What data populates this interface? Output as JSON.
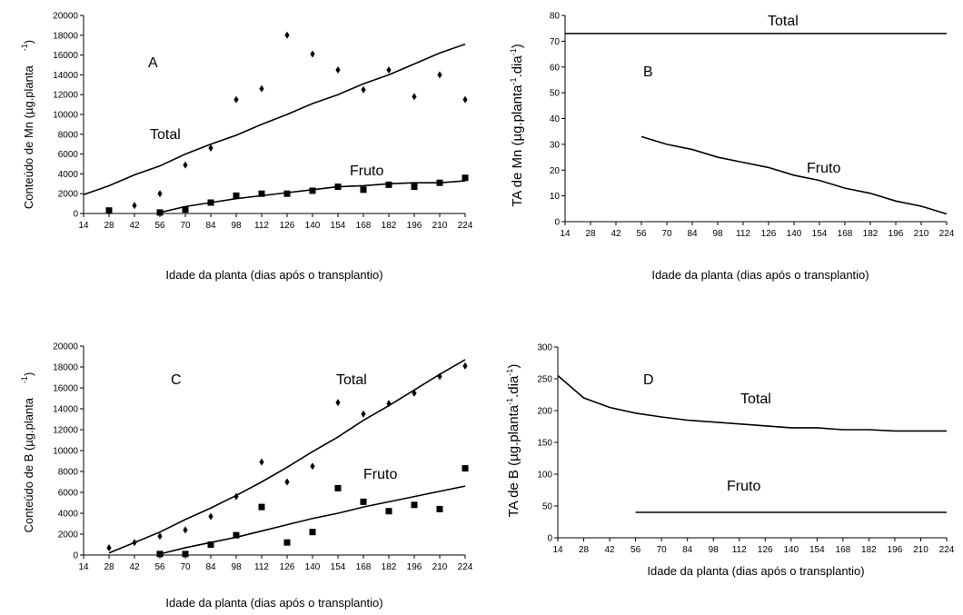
{
  "x_ticks": [
    14,
    28,
    42,
    56,
    70,
    84,
    98,
    112,
    126,
    140,
    154,
    168,
    182,
    196,
    210,
    224
  ],
  "chart_data": [
    {
      "id": "A",
      "type": "scatter",
      "panel_label": "A",
      "xlabel": "Idade da planta (dias após o transplantio)",
      "ylabel": "Conteúdo de Mn (µg.planta",
      "ylabel_sup": "-1",
      "ylabel_tail": ")",
      "xlim": [
        14,
        224
      ],
      "ylim": [
        0,
        20000
      ],
      "yticks": [
        0,
        2000,
        4000,
        6000,
        8000,
        10000,
        12000,
        14000,
        16000,
        18000,
        20000
      ],
      "series": [
        {
          "name": "Total",
          "points": [
            [
              28,
              200
            ],
            [
              42,
              800
            ],
            [
              56,
              2000
            ],
            [
              70,
              4900
            ],
            [
              84,
              6600
            ],
            [
              98,
              11500
            ],
            [
              112,
              12600
            ],
            [
              126,
              18000
            ],
            [
              140,
              16100
            ],
            [
              154,
              14500
            ],
            [
              168,
              12500
            ],
            [
              182,
              14500
            ],
            [
              196,
              11800
            ],
            [
              210,
              14000
            ],
            [
              224,
              11500
            ]
          ],
          "fit": [
            [
              14,
              1900
            ],
            [
              28,
              2800
            ],
            [
              42,
              3900
            ],
            [
              56,
              4800
            ],
            [
              70,
              6000
            ],
            [
              84,
              7000
            ],
            [
              98,
              7900
            ],
            [
              112,
              9000
            ],
            [
              126,
              10000
            ],
            [
              140,
              11100
            ],
            [
              154,
              12000
            ],
            [
              168,
              13100
            ],
            [
              182,
              14000
            ],
            [
              196,
              15100
            ],
            [
              210,
              16200
            ],
            [
              224,
              17100
            ]
          ]
        },
        {
          "name": "Fruto",
          "points": [
            [
              28,
              300
            ],
            [
              56,
              100
            ],
            [
              70,
              400
            ],
            [
              84,
              1100
            ],
            [
              98,
              1800
            ],
            [
              112,
              2000
            ],
            [
              126,
              2000
            ],
            [
              140,
              2300
            ],
            [
              154,
              2700
            ],
            [
              168,
              2400
            ],
            [
              182,
              2900
            ],
            [
              196,
              2700
            ],
            [
              210,
              3100
            ],
            [
              224,
              3600
            ]
          ],
          "fit": [
            [
              56,
              100
            ],
            [
              70,
              700
            ],
            [
              84,
              1100
            ],
            [
              98,
              1500
            ],
            [
              112,
              1800
            ],
            [
              126,
              2100
            ],
            [
              140,
              2400
            ],
            [
              154,
              2700
            ],
            [
              168,
              2800
            ],
            [
              182,
              3000
            ],
            [
              196,
              3100
            ],
            [
              210,
              3100
            ],
            [
              224,
              3300
            ]
          ]
        }
      ]
    },
    {
      "id": "B",
      "type": "line",
      "panel_label": "B",
      "xlabel": "Idade da planta (dias após o transplantio)",
      "ylabel": "TA de Mn (µg.planta",
      "ylabel_sup1": "-1",
      "ylabel_mid": ".dia",
      "ylabel_sup2": "-1",
      "ylabel_tail": ")",
      "xlim": [
        14,
        224
      ],
      "ylim": [
        0,
        80
      ],
      "yticks": [
        0,
        10,
        20,
        30,
        40,
        50,
        60,
        70,
        80
      ],
      "series": [
        {
          "name": "Total",
          "line": [
            [
              14,
              73
            ],
            [
              224,
              73
            ]
          ]
        },
        {
          "name": "Fruto",
          "line": [
            [
              56,
              33
            ],
            [
              70,
              30
            ],
            [
              84,
              28
            ],
            [
              98,
              25
            ],
            [
              112,
              23
            ],
            [
              126,
              21
            ],
            [
              140,
              18
            ],
            [
              154,
              16
            ],
            [
              168,
              13
            ],
            [
              182,
              11
            ],
            [
              196,
              8
            ],
            [
              210,
              6
            ],
            [
              224,
              3
            ]
          ]
        }
      ]
    },
    {
      "id": "C",
      "type": "scatter",
      "panel_label": "C",
      "xlabel": "Idade da planta (dias após o transplantio)",
      "ylabel": "Conteúdo de B (µg.planta",
      "ylabel_sup": "-1",
      "ylabel_tail": ")",
      "xlim": [
        14,
        224
      ],
      "ylim": [
        0,
        20000
      ],
      "yticks": [
        0,
        2000,
        4000,
        6000,
        8000,
        10000,
        12000,
        14000,
        16000,
        18000,
        20000
      ],
      "series": [
        {
          "name": "Total",
          "points": [
            [
              28,
              700
            ],
            [
              42,
              1200
            ],
            [
              56,
              1800
            ],
            [
              70,
              2400
            ],
            [
              84,
              3700
            ],
            [
              98,
              5600
            ],
            [
              112,
              8900
            ],
            [
              126,
              7000
            ],
            [
              140,
              8500
            ],
            [
              154,
              14600
            ],
            [
              168,
              13500
            ],
            [
              182,
              14500
            ],
            [
              196,
              15500
            ],
            [
              210,
              17100
            ],
            [
              224,
              18100
            ]
          ],
          "fit": [
            [
              28,
              200
            ],
            [
              42,
              1200
            ],
            [
              56,
              2200
            ],
            [
              70,
              3400
            ],
            [
              84,
              4500
            ],
            [
              98,
              5700
            ],
            [
              112,
              7000
            ],
            [
              126,
              8400
            ],
            [
              140,
              9900
            ],
            [
              154,
              11300
            ],
            [
              168,
              12900
            ],
            [
              182,
              14300
            ],
            [
              196,
              15800
            ],
            [
              210,
              17300
            ],
            [
              224,
              18700
            ]
          ]
        },
        {
          "name": "Fruto",
          "points": [
            [
              56,
              100
            ],
            [
              70,
              100
            ],
            [
              84,
              1000
            ],
            [
              98,
              1900
            ],
            [
              112,
              4600
            ],
            [
              126,
              1200
            ],
            [
              140,
              2200
            ],
            [
              154,
              6400
            ],
            [
              168,
              5100
            ],
            [
              182,
              4200
            ],
            [
              196,
              4800
            ],
            [
              210,
              4400
            ],
            [
              224,
              8300
            ]
          ],
          "fit": [
            [
              56,
              100
            ],
            [
              70,
              700
            ],
            [
              84,
              1200
            ],
            [
              98,
              1700
            ],
            [
              112,
              2300
            ],
            [
              126,
              2900
            ],
            [
              140,
              3500
            ],
            [
              154,
              4000
            ],
            [
              168,
              4600
            ],
            [
              182,
              5100
            ],
            [
              196,
              5600
            ],
            [
              210,
              6100
            ],
            [
              224,
              6600
            ]
          ]
        }
      ]
    },
    {
      "id": "D",
      "type": "line",
      "panel_label": "D",
      "xlabel": "Idade da planta (dias após o transplantio)",
      "ylabel": "TA de B (µg.planta",
      "ylabel_sup1": "-1",
      "ylabel_mid": ".dia",
      "ylabel_sup2": "-1",
      "ylabel_tail": ")",
      "xlim": [
        14,
        224
      ],
      "ylim": [
        0,
        300
      ],
      "yticks": [
        0,
        50,
        100,
        150,
        200,
        250,
        300
      ],
      "series": [
        {
          "name": "Total",
          "line": [
            [
              14,
              255
            ],
            [
              28,
              220
            ],
            [
              42,
              205
            ],
            [
              56,
              196
            ],
            [
              70,
              190
            ],
            [
              84,
              185
            ],
            [
              98,
              182
            ],
            [
              112,
              179
            ],
            [
              126,
              176
            ],
            [
              140,
              173
            ],
            [
              154,
              173
            ],
            [
              168,
              170
            ],
            [
              182,
              170
            ],
            [
              196,
              168
            ],
            [
              210,
              168
            ],
            [
              224,
              168
            ]
          ]
        },
        {
          "name": "Fruto",
          "line": [
            [
              56,
              40
            ],
            [
              224,
              40
            ]
          ]
        }
      ]
    }
  ]
}
